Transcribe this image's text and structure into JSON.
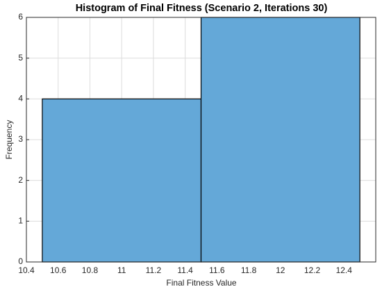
{
  "chart_data": {
    "type": "histogram",
    "title": "Histogram of Final Fitness (Scenario 2, Iterations 30)",
    "xlabel": "Final Fitness Value",
    "ylabel": "Frequency",
    "bins": [
      10.5,
      11.5,
      12.5
    ],
    "values": [
      4,
      6
    ],
    "color": "#64a8d8",
    "edgecolor": "#000000",
    "xlim": [
      10.4,
      12.6
    ],
    "xticks": [
      10.4,
      10.6,
      10.8,
      11,
      11.2,
      11.4,
      11.6,
      11.8,
      12,
      12.2,
      12.4
    ],
    "ylim": [
      0,
      6
    ],
    "yticks": [
      0,
      1,
      2,
      3,
      4,
      5,
      6
    ],
    "grid": true
  }
}
